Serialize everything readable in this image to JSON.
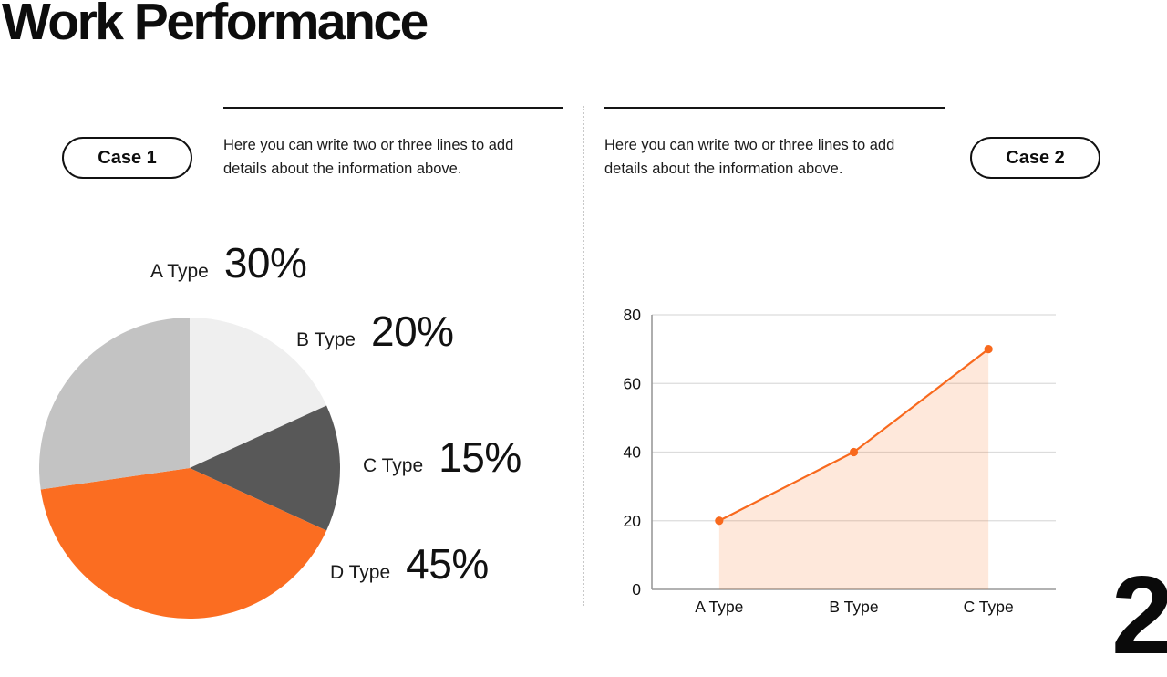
{
  "title": "Work Performance",
  "page_number": "2",
  "left_panel": {
    "badge": "Case 1",
    "description": "Here you can write two or three lines to add details about the information above."
  },
  "right_panel": {
    "badge": "Case 2",
    "description": "Here you can write two or three lines to add details about the information above."
  },
  "chart_data": [
    {
      "type": "pie",
      "categories": [
        "A Type",
        "B Type",
        "C Type",
        "D Type"
      ],
      "values": [
        30,
        20,
        15,
        45
      ],
      "value_labels": [
        "30%",
        "20%",
        "15%",
        "45%"
      ],
      "colors": [
        "#c3c3c3",
        "#efefef",
        "#585858",
        "#fb6d21"
      ],
      "draw_order_clockwise_from_top": [
        1,
        2,
        3,
        0
      ],
      "legend_position": "around-pie",
      "grid": false
    },
    {
      "type": "area",
      "categories": [
        "A Type",
        "B Type",
        "C Type"
      ],
      "values": [
        20,
        40,
        70
      ],
      "ylim": [
        0,
        80
      ],
      "yticks": [
        0,
        20,
        40,
        60,
        80
      ],
      "grid": true,
      "legend_position": "none",
      "line_color": "#f8691d",
      "marker_color": "#f8691d",
      "fill_color": "rgba(251,109,33,0.16)",
      "axis_color": "#999999",
      "gridline_color": "#dcdcdc",
      "tick_color": "#111111"
    }
  ]
}
